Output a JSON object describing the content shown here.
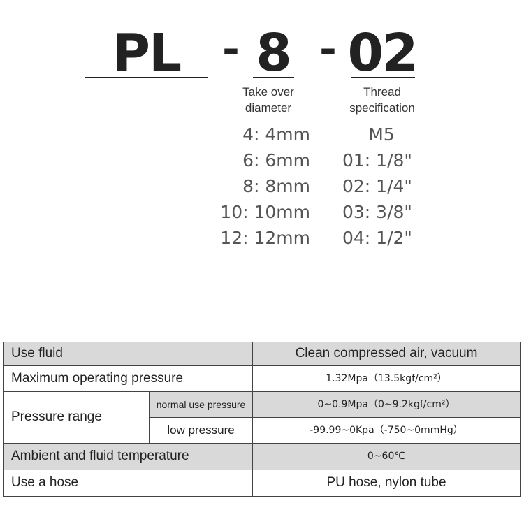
{
  "model_code": {
    "series": "PL",
    "sep": "-",
    "diameter": "8",
    "thread": "02"
  },
  "labels": {
    "diameter": [
      "Take over",
      "diameter"
    ],
    "thread": [
      "Thread",
      "specification"
    ]
  },
  "diameter_options": [
    "4: 4mm",
    "6: 6mm",
    "8: 8mm",
    "10: 10mm",
    "12: 12mm"
  ],
  "thread_options": [
    "M5",
    "01: 1/8\"",
    "02: 1/4\"",
    "03: 3/8\"",
    "04: 1/2\""
  ],
  "specs": {
    "use_fluid": {
      "label": "Use fluid",
      "value": "Clean compressed air, vacuum"
    },
    "max_pressure": {
      "label": "Maximum operating pressure",
      "value": "1.32Mpa（13.5kgf/cm²）"
    },
    "pressure_range": {
      "label": "Pressure range",
      "normal": {
        "label": "normal use pressure",
        "value": "0~0.9Mpa（0~9.2kgf/cm²）"
      },
      "low": {
        "label": "low pressure",
        "value": "-99.99~0Kpa（-750~0mmHg）"
      }
    },
    "temperature": {
      "label": "Ambient and fluid temperature",
      "value": "0~60℃"
    },
    "hose": {
      "label": "Use a hose",
      "value": "PU hose, nylon tube"
    }
  },
  "colors": {
    "header_gray": "#d9d9d9",
    "text": "#222222"
  }
}
